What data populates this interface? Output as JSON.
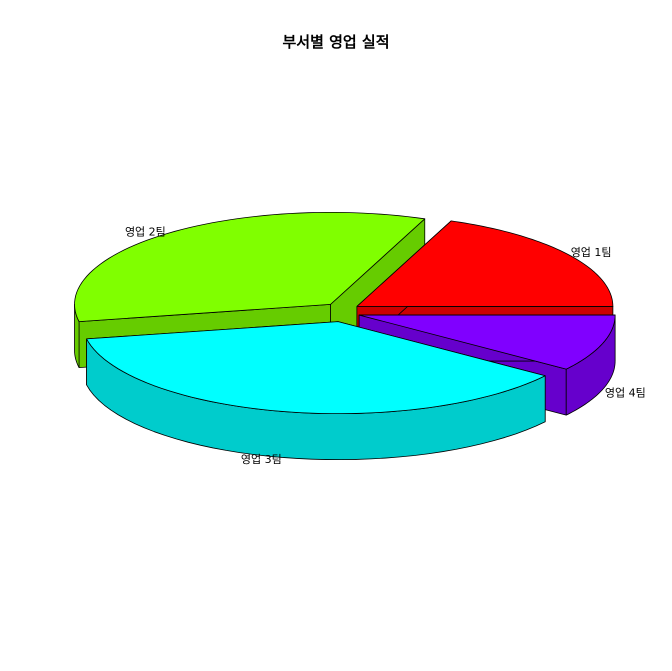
{
  "chart_data": {
    "type": "pie",
    "style": "3d-exploded",
    "title": "부서별 영업 실적",
    "categories": [
      "영업 1팀",
      "영업 2팀",
      "영업 3팀",
      "영업 4팀"
    ],
    "values": [
      19,
      34,
      37,
      10
    ],
    "colors": [
      "#ff0000",
      "#80ff00",
      "#00ffff",
      "#8000ff"
    ],
    "side_colors": [
      "#cc0000",
      "#66cc00",
      "#00cccc",
      "#6600cc"
    ]
  }
}
